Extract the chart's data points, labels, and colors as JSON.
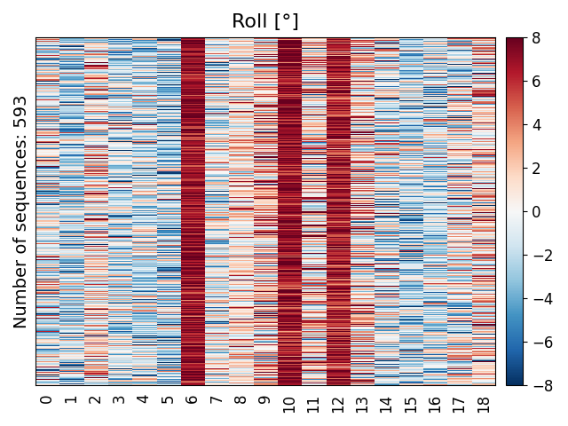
{
  "title": "Roll [°]",
  "ylabel": "Number of sequences: 593",
  "n_rows": 593,
  "n_cols": 19,
  "vmin": -8,
  "vmax": 8,
  "cmap": "RdBu_r",
  "xtick_labels": [
    "0",
    "1",
    "2",
    "3",
    "4",
    "5",
    "6",
    "7",
    "8",
    "9",
    "10",
    "11",
    "12",
    "13",
    "14",
    "15",
    "16",
    "17",
    "18"
  ],
  "colorbar_ticks": [
    -8,
    -6,
    -4,
    -2,
    0,
    2,
    4,
    6,
    8
  ],
  "title_fontsize": 16,
  "label_fontsize": 14,
  "tick_fontsize": 12,
  "col_means": [
    -0.5,
    -2.5,
    0.5,
    -1.5,
    -1.5,
    -2.0,
    7.0,
    -0.5,
    1.0,
    2.5,
    7.0,
    1.5,
    6.5,
    1.5,
    -1.0,
    -2.0,
    -1.5,
    0.0,
    1.5
  ],
  "col_stds": [
    3.5,
    3.0,
    3.5,
    3.0,
    3.0,
    3.0,
    1.2,
    3.0,
    2.5,
    3.5,
    1.5,
    3.5,
    1.5,
    3.5,
    3.5,
    3.0,
    3.0,
    3.5,
    3.5
  ],
  "seed": 42
}
